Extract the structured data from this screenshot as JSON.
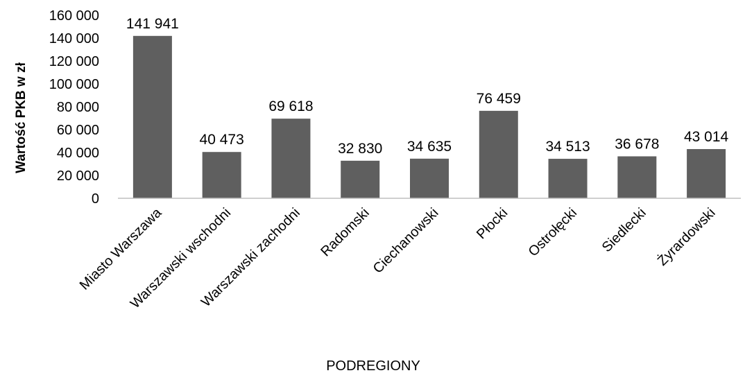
{
  "chart_data": {
    "type": "bar",
    "categories": [
      "Miasto Warszawa",
      "Warszawski wschodni",
      "Warszawski zachodni",
      "Radomski",
      "Ciechanowski",
      "Płocki",
      "Ostrołęcki",
      "Siedlecki",
      "Żyrardowski"
    ],
    "values": [
      141941,
      40473,
      69618,
      32830,
      34635,
      76459,
      34513,
      36678,
      43014
    ],
    "data_labels": [
      "141 941",
      "40 473",
      "69 618",
      "32 830",
      "34 635",
      "76 459",
      "34 513",
      "36 678",
      "43 014"
    ],
    "yticks": [
      0,
      20000,
      40000,
      60000,
      80000,
      100000,
      120000,
      140000,
      160000
    ],
    "ytick_labels": [
      "0",
      "20 000",
      "40 000",
      "60 000",
      "80 000",
      "100 000",
      "120 000",
      "140 000",
      "160 000"
    ],
    "ylim": [
      0,
      160000
    ],
    "xlabel": "PODREGIONY",
    "ylabel": "Wartość PKB w zł",
    "bar_color": "#5f5f5f",
    "grid": false,
    "legend": "none"
  }
}
